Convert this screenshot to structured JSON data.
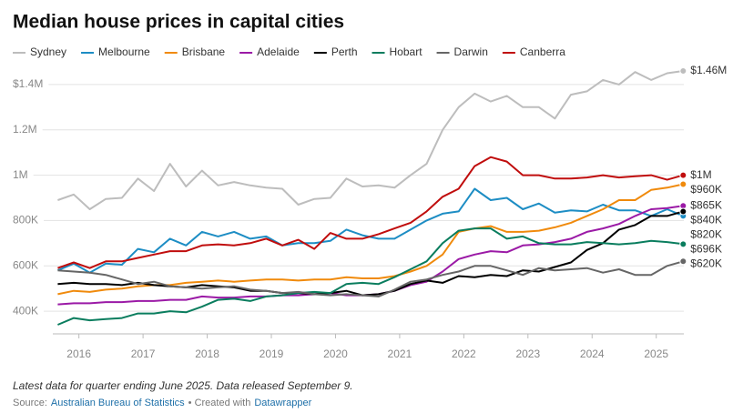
{
  "chart_data": {
    "type": "line",
    "title": "Median house prices in capital cities",
    "note": "Latest data for quarter ending June 2025. Data released September 9.",
    "source_label": "Source:",
    "source": "Australian Bureau of Statistics",
    "credit_label": "• Created with",
    "credit": "Datawrapper",
    "x": [
      2015.67,
      2015.92,
      2016.17,
      2016.42,
      2016.67,
      2016.92,
      2017.17,
      2017.42,
      2017.67,
      2017.92,
      2018.17,
      2018.42,
      2018.67,
      2018.92,
      2019.17,
      2019.42,
      2019.67,
      2019.92,
      2020.17,
      2020.42,
      2020.67,
      2020.92,
      2021.17,
      2021.42,
      2021.67,
      2021.92,
      2022.17,
      2022.42,
      2022.67,
      2022.92,
      2023.17,
      2023.42,
      2023.67,
      2023.92,
      2024.17,
      2024.42,
      2024.67,
      2024.92,
      2025.17,
      2025.42
    ],
    "xlim": [
      2015.65,
      2025.43
    ],
    "xticks": [
      2016,
      2017,
      2018,
      2019,
      2020,
      2021,
      2022,
      2023,
      2024,
      2025
    ],
    "ylim": [
      300000,
      1500000
    ],
    "yticks": [
      {
        "value": 400000,
        "label": "400K"
      },
      {
        "value": 600000,
        "label": "600K"
      },
      {
        "value": 800000,
        "label": "800K"
      },
      {
        "value": 1000000,
        "label": "1M"
      },
      {
        "value": 1200000,
        "label": "1.2M"
      },
      {
        "value": 1400000,
        "label": "$1.4M"
      }
    ],
    "grid": true,
    "legend": "top",
    "series": [
      {
        "name": "Sydney",
        "color": "#bdbdbd",
        "values": [
          890000,
          915000,
          850000,
          895000,
          900000,
          985000,
          930000,
          1050000,
          950000,
          1020000,
          955000,
          970000,
          955000,
          945000,
          940000,
          870000,
          895000,
          900000,
          985000,
          950000,
          955000,
          945000,
          1000000,
          1050000,
          1200000,
          1300000,
          1360000,
          1325000,
          1350000,
          1300000,
          1300000,
          1250000,
          1355000,
          1370000,
          1420000,
          1400000,
          1455000,
          1420000,
          1450000,
          1460000
        ],
        "value_labels": [
          null,
          null,
          null,
          null,
          null,
          null,
          null,
          null,
          null,
          null,
          null,
          null,
          null,
          null,
          null,
          null,
          null,
          null,
          null,
          null,
          null,
          null,
          null,
          null,
          null,
          null,
          null,
          null,
          null,
          null,
          null,
          null,
          null,
          null,
          null,
          null,
          null,
          null,
          null,
          "$1.46M"
        ]
      },
      {
        "name": "Melbourne",
        "color": "#1d8dc4",
        "values": [
          580000,
          610000,
          570000,
          610000,
          605000,
          675000,
          660000,
          720000,
          690000,
          750000,
          730000,
          750000,
          720000,
          730000,
          690000,
          700000,
          700000,
          710000,
          760000,
          735000,
          720000,
          720000,
          760000,
          800000,
          830000,
          840000,
          940000,
          890000,
          900000,
          850000,
          875000,
          835000,
          845000,
          840000,
          870000,
          845000,
          845000,
          820000,
          850000,
          820000
        ],
        "value_labels": [
          null,
          null,
          null,
          null,
          null,
          null,
          null,
          null,
          null,
          null,
          null,
          null,
          null,
          null,
          null,
          null,
          null,
          null,
          null,
          null,
          null,
          null,
          null,
          null,
          null,
          null,
          null,
          null,
          null,
          null,
          null,
          null,
          null,
          null,
          null,
          null,
          null,
          null,
          null,
          "$820K"
        ]
      },
      {
        "name": "Brisbane",
        "color": "#f08a0c",
        "values": [
          475000,
          490000,
          485000,
          495000,
          500000,
          510000,
          515000,
          515000,
          525000,
          530000,
          535000,
          530000,
          535000,
          540000,
          540000,
          535000,
          540000,
          540000,
          550000,
          545000,
          545000,
          555000,
          575000,
          600000,
          650000,
          750000,
          765000,
          775000,
          750000,
          750000,
          755000,
          770000,
          790000,
          820000,
          850000,
          890000,
          890000,
          935000,
          945000,
          960000
        ],
        "value_labels": [
          null,
          null,
          null,
          null,
          null,
          null,
          null,
          null,
          null,
          null,
          null,
          null,
          null,
          null,
          null,
          null,
          null,
          null,
          null,
          null,
          null,
          null,
          null,
          null,
          null,
          null,
          null,
          null,
          null,
          null,
          null,
          null,
          null,
          null,
          null,
          null,
          null,
          null,
          null,
          "$960K"
        ]
      },
      {
        "name": "Adelaide",
        "color": "#9b1aa6",
        "values": [
          430000,
          435000,
          435000,
          440000,
          440000,
          445000,
          445000,
          450000,
          450000,
          465000,
          460000,
          460000,
          465000,
          465000,
          470000,
          470000,
          475000,
          480000,
          470000,
          470000,
          475000,
          490000,
          515000,
          530000,
          575000,
          630000,
          650000,
          665000,
          660000,
          690000,
          695000,
          705000,
          720000,
          750000,
          765000,
          785000,
          820000,
          850000,
          855000,
          865000
        ],
        "value_labels": [
          null,
          null,
          null,
          null,
          null,
          null,
          null,
          null,
          null,
          null,
          null,
          null,
          null,
          null,
          null,
          null,
          null,
          null,
          null,
          null,
          null,
          null,
          null,
          null,
          null,
          null,
          null,
          null,
          null,
          null,
          null,
          null,
          null,
          null,
          null,
          null,
          null,
          null,
          null,
          "$865K"
        ]
      },
      {
        "name": "Perth",
        "color": "#000000",
        "values": [
          520000,
          525000,
          520000,
          520000,
          515000,
          525000,
          515000,
          510000,
          505000,
          515000,
          510000,
          505000,
          490000,
          490000,
          480000,
          480000,
          475000,
          480000,
          490000,
          470000,
          475000,
          490000,
          520000,
          535000,
          525000,
          555000,
          550000,
          560000,
          555000,
          580000,
          575000,
          595000,
          615000,
          670000,
          700000,
          760000,
          780000,
          820000,
          820000,
          840000
        ],
        "value_labels": [
          null,
          null,
          null,
          null,
          null,
          null,
          null,
          null,
          null,
          null,
          null,
          null,
          null,
          null,
          null,
          null,
          null,
          null,
          null,
          null,
          null,
          null,
          null,
          null,
          null,
          null,
          null,
          null,
          null,
          null,
          null,
          null,
          null,
          null,
          null,
          null,
          null,
          null,
          null,
          "$840K"
        ]
      },
      {
        "name": "Hobart",
        "color": "#0a7d5e",
        "values": [
          340000,
          370000,
          360000,
          365000,
          370000,
          390000,
          390000,
          400000,
          395000,
          420000,
          450000,
          455000,
          445000,
          465000,
          470000,
          480000,
          485000,
          480000,
          520000,
          525000,
          520000,
          550000,
          585000,
          620000,
          700000,
          755000,
          765000,
          765000,
          720000,
          730000,
          700000,
          695000,
          695000,
          705000,
          700000,
          695000,
          700000,
          710000,
          705000,
          696000
        ],
        "value_labels": [
          null,
          null,
          null,
          null,
          null,
          null,
          null,
          null,
          null,
          null,
          null,
          null,
          null,
          null,
          null,
          null,
          null,
          null,
          null,
          null,
          null,
          null,
          null,
          null,
          null,
          null,
          null,
          null,
          null,
          null,
          null,
          null,
          null,
          null,
          null,
          null,
          null,
          null,
          null,
          "$696K"
        ]
      },
      {
        "name": "Darwin",
        "color": "#666666",
        "values": [
          580000,
          575000,
          570000,
          560000,
          540000,
          520000,
          530000,
          510000,
          505000,
          500000,
          505000,
          510000,
          495000,
          490000,
          480000,
          485000,
          475000,
          470000,
          475000,
          470000,
          465000,
          495000,
          530000,
          540000,
          560000,
          575000,
          600000,
          600000,
          580000,
          560000,
          590000,
          580000,
          585000,
          590000,
          570000,
          585000,
          560000,
          560000,
          600000,
          620000
        ],
        "value_labels": [
          null,
          null,
          null,
          null,
          null,
          null,
          null,
          null,
          null,
          null,
          null,
          null,
          null,
          null,
          null,
          null,
          null,
          null,
          null,
          null,
          null,
          null,
          null,
          null,
          null,
          null,
          null,
          null,
          null,
          null,
          null,
          null,
          null,
          null,
          null,
          null,
          null,
          null,
          null,
          "$620K"
        ]
      },
      {
        "name": "Canberra",
        "color": "#c00d0d",
        "values": [
          590000,
          615000,
          590000,
          620000,
          620000,
          635000,
          650000,
          665000,
          665000,
          690000,
          695000,
          690000,
          700000,
          720000,
          690000,
          715000,
          675000,
          745000,
          720000,
          720000,
          740000,
          765000,
          790000,
          840000,
          905000,
          940000,
          1040000,
          1080000,
          1060000,
          1000000,
          1000000,
          985000,
          985000,
          990000,
          1000000,
          990000,
          995000,
          1000000,
          980000,
          1000000
        ],
        "value_labels": [
          null,
          null,
          null,
          null,
          null,
          null,
          null,
          null,
          null,
          null,
          null,
          null,
          null,
          null,
          null,
          null,
          null,
          null,
          null,
          null,
          null,
          null,
          null,
          null,
          null,
          null,
          null,
          null,
          null,
          null,
          null,
          null,
          null,
          null,
          null,
          null,
          null,
          null,
          null,
          "$1M"
        ]
      }
    ]
  }
}
